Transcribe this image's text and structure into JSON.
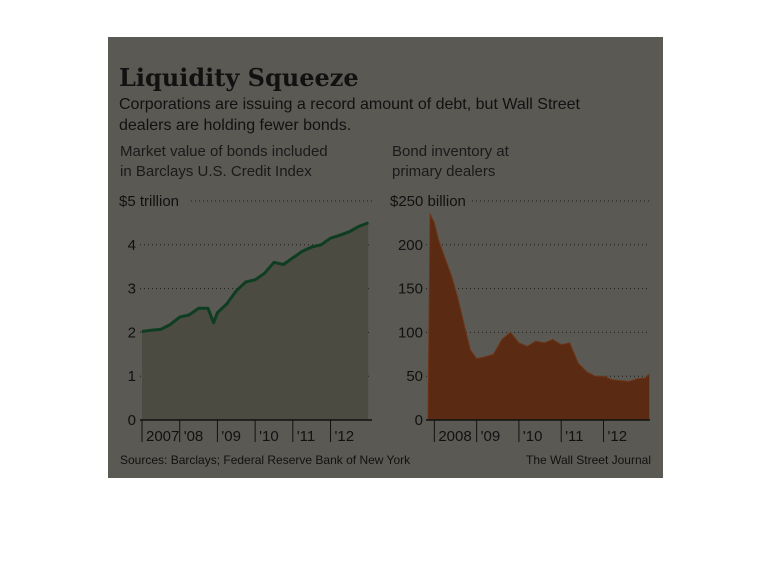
{
  "header": {
    "title": "Liquidity Squeeze",
    "subtitle_line1": "Corporations are issuing a record amount of debt, but Wall Street",
    "subtitle_line2": "dealers are holding fewer bonds."
  },
  "footer": {
    "source": "Sources: Barclays; Federal Reserve Bank of New York",
    "credit": "The Wall Street Journal"
  },
  "colors": {
    "background": "#5a5954",
    "left_fill": "#4c4b41",
    "left_line": "#0f3d22",
    "right_fill": "#5a2a12",
    "right_line": "#6e3416"
  },
  "chart_data": [
    {
      "type": "area",
      "title_line1": "Market value of bonds included",
      "title_line2": "in Barclays U.S. Credit Index",
      "unit_label": "$5 trillion",
      "y_ticks": [
        "4",
        "3",
        "2",
        "1",
        "0"
      ],
      "x_ticks": [
        "2007",
        "'08",
        "'09",
        "'10",
        "'11",
        "'12"
      ],
      "ylim": [
        0,
        5
      ],
      "xlim": [
        2007,
        2013.1
      ],
      "grid": true,
      "x": [
        2007.0,
        2007.25,
        2007.5,
        2007.75,
        2008.0,
        2008.25,
        2008.5,
        2008.75,
        2008.9,
        2009.0,
        2009.25,
        2009.5,
        2009.75,
        2010.0,
        2010.25,
        2010.5,
        2010.75,
        2011.0,
        2011.25,
        2011.5,
        2011.75,
        2012.0,
        2012.25,
        2012.5,
        2012.75,
        2013.0
      ],
      "values": [
        2.02,
        2.05,
        2.07,
        2.18,
        2.35,
        2.4,
        2.55,
        2.55,
        2.22,
        2.45,
        2.65,
        2.95,
        3.15,
        3.2,
        3.35,
        3.6,
        3.55,
        3.7,
        3.85,
        3.95,
        4.0,
        4.15,
        4.22,
        4.3,
        4.42,
        4.5
      ]
    },
    {
      "type": "area",
      "title_line1": "Bond inventory at",
      "title_line2": "primary dealers",
      "unit_label": "$250 billion",
      "y_ticks": [
        "200",
        "150",
        "100",
        "50",
        "0"
      ],
      "x_ticks": [
        "2008",
        "'09",
        "'10",
        "'11",
        "'12"
      ],
      "ylim": [
        0,
        250
      ],
      "xlim": [
        2007.85,
        2013.1
      ],
      "grid": true,
      "x": [
        2007.85,
        2007.9,
        2008.0,
        2008.1,
        2008.25,
        2008.4,
        2008.55,
        2008.7,
        2008.85,
        2009.0,
        2009.2,
        2009.4,
        2009.6,
        2009.8,
        2010.0,
        2010.2,
        2010.4,
        2010.6,
        2010.8,
        2011.0,
        2011.2,
        2011.4,
        2011.6,
        2011.8,
        2012.0,
        2012.2,
        2012.4,
        2012.6,
        2012.8,
        2013.0,
        2013.08
      ],
      "values": [
        0,
        235,
        225,
        205,
        185,
        165,
        140,
        110,
        80,
        70,
        72,
        75,
        92,
        100,
        88,
        84,
        90,
        88,
        92,
        86,
        88,
        65,
        55,
        50,
        50,
        46,
        45,
        44,
        47,
        48,
        52
      ]
    }
  ]
}
